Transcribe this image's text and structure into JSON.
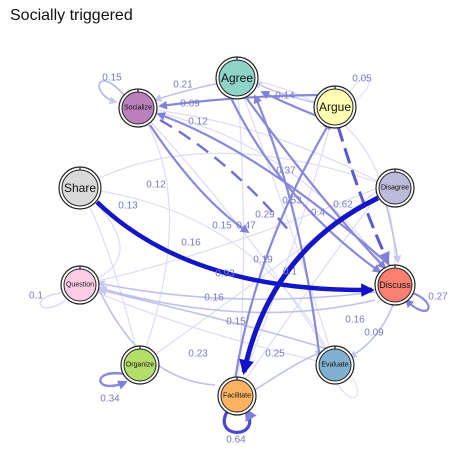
{
  "title": "Socially triggered",
  "nodes": [
    {
      "id": "agree",
      "label": "Agree",
      "color": "#8dd3c7",
      "size": "big"
    },
    {
      "id": "argue",
      "label": "Argue",
      "color": "#ffffb3",
      "size": "big"
    },
    {
      "id": "disagree",
      "label": "Disagree",
      "color": "#bebada",
      "size": "small"
    },
    {
      "id": "discuss",
      "label": "Discuss",
      "color": "#fb8072",
      "size": "mid"
    },
    {
      "id": "evaluate",
      "label": "Evaluate",
      "color": "#80b1d3",
      "size": "small"
    },
    {
      "id": "facilitate",
      "label": "Facilitate",
      "color": "#fdb462",
      "size": "small"
    },
    {
      "id": "organize",
      "label": "Organize",
      "color": "#b3de69",
      "size": "small"
    },
    {
      "id": "question",
      "label": "Question",
      "color": "#fccde5",
      "size": "small"
    },
    {
      "id": "share",
      "label": "Share",
      "color": "#d9d9d9",
      "size": "big"
    },
    {
      "id": "socialize",
      "label": "Socialize",
      "color": "#bc80bd",
      "size": "small"
    }
  ],
  "edge_labels": [
    "0.15",
    "0.21",
    "0.09",
    "0.14",
    "0.05",
    "0.12",
    "0.13",
    "0.12",
    "0.37",
    "0.53",
    "0.4",
    "0.62",
    "0.47",
    "0.29",
    "0.15",
    "0.16",
    "0.19",
    "0.93",
    "0.1",
    "0.1",
    "0.16",
    "0.15",
    "0.23",
    "0.25",
    "0.16",
    "0.09",
    "0.34",
    "0.64",
    "0.27"
  ]
}
